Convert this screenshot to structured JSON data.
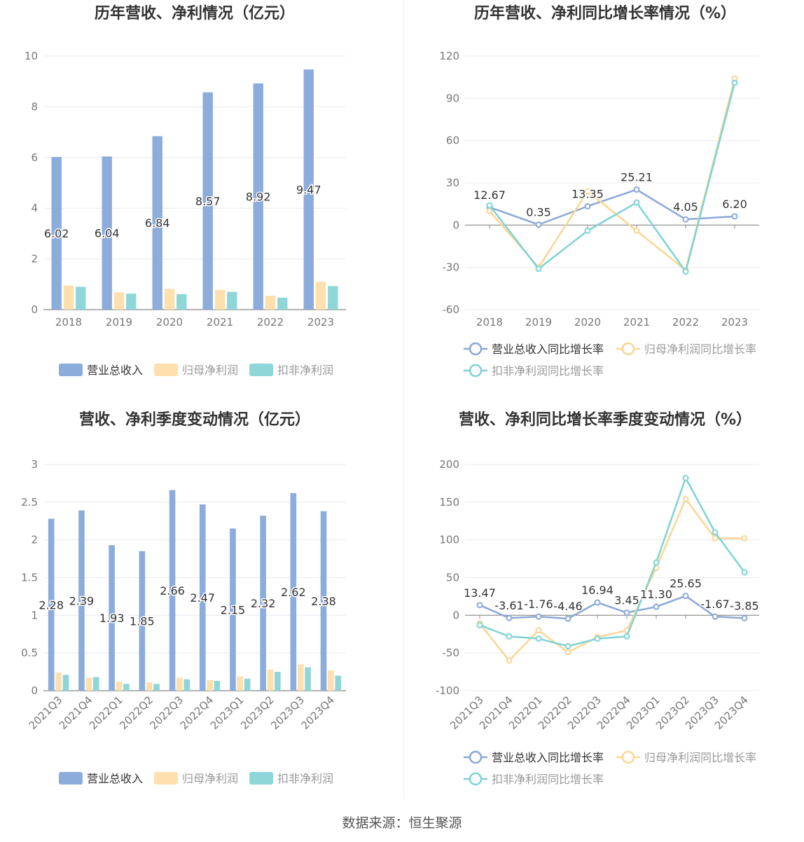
{
  "footer": {
    "source": "数据来源：恒生聚源"
  },
  "colors": {
    "revenue": "#8cacdc",
    "net_profit": "#fde0ad",
    "deducted_profit": "#8fd6d9",
    "revenue_line": "#8aa8d8",
    "net_line": "#fad694",
    "deducted_line": "#7fd3d4",
    "grid": "#e8ebf2",
    "axis": "#888888",
    "tick": "#777777",
    "title": "#333333"
  },
  "chart_data": [
    {
      "id": "annual-bar",
      "type": "bar",
      "title": "历年营收、净利情况（亿元）",
      "categories": [
        "2018",
        "2019",
        "2020",
        "2021",
        "2022",
        "2023"
      ],
      "ylim": [
        0,
        10
      ],
      "yticks": [
        0,
        2,
        4,
        6,
        8,
        10
      ],
      "grid": true,
      "legend_position": "bottom",
      "series": [
        {
          "name": "营业总收入",
          "values": [
            6.02,
            6.04,
            6.84,
            8.57,
            8.92,
            9.47
          ],
          "labels": [
            "6.02",
            "6.04",
            "6.84",
            "8.57",
            "8.92",
            "9.47"
          ]
        },
        {
          "name": "归母净利润",
          "values": [
            0.95,
            0.68,
            0.82,
            0.78,
            0.55,
            1.1
          ]
        },
        {
          "name": "扣非净利润",
          "values": [
            0.9,
            0.63,
            0.61,
            0.7,
            0.47,
            0.93
          ]
        }
      ]
    },
    {
      "id": "annual-line",
      "type": "line",
      "title": "历年营收、净利同比增长率情况（%）",
      "categories": [
        "2018",
        "2019",
        "2020",
        "2021",
        "2022",
        "2023"
      ],
      "ylim": [
        -60,
        120
      ],
      "yticks": [
        -60,
        -30,
        0,
        30,
        60,
        90,
        120
      ],
      "grid": true,
      "legend_position": "bottom",
      "series": [
        {
          "name": "营业总收入同比增长率",
          "values": [
            12.67,
            0.35,
            13.35,
            25.21,
            4.05,
            6.2
          ],
          "labels": [
            "12.67",
            "0.35",
            "13.35",
            "25.21",
            "4.05",
            "6.20"
          ]
        },
        {
          "name": "归母净利润同比增长率",
          "values": [
            10,
            -30,
            24,
            -4,
            -32,
            104
          ]
        },
        {
          "name": "扣非净利润同比增长率",
          "values": [
            14,
            -31,
            -4,
            16,
            -33,
            101
          ]
        }
      ]
    },
    {
      "id": "quarter-bar",
      "type": "bar",
      "title": "营收、净利季度变动情况（亿元）",
      "categories": [
        "2021Q3",
        "2021Q4",
        "2022Q1",
        "2022Q2",
        "2022Q3",
        "2022Q4",
        "2023Q1",
        "2023Q2",
        "2023Q3",
        "2023Q4"
      ],
      "ylim": [
        0,
        3
      ],
      "yticks": [
        0,
        0.5,
        1,
        1.5,
        2,
        2.5,
        3
      ],
      "grid": true,
      "legend_position": "bottom",
      "series": [
        {
          "name": "营业总收入",
          "values": [
            2.28,
            2.39,
            1.93,
            1.85,
            2.66,
            2.47,
            2.15,
            2.32,
            2.62,
            2.38
          ],
          "labels": [
            "2.28",
            "2.39",
            "1.93",
            "1.85",
            "2.66",
            "2.47",
            "2.15",
            "2.32",
            "2.62",
            "2.38"
          ]
        },
        {
          "name": "归母净利润",
          "values": [
            0.24,
            0.17,
            0.12,
            0.11,
            0.17,
            0.14,
            0.19,
            0.28,
            0.35,
            0.27
          ]
        },
        {
          "name": "扣非净利润",
          "values": [
            0.21,
            0.18,
            0.09,
            0.09,
            0.15,
            0.13,
            0.16,
            0.25,
            0.31,
            0.2
          ]
        }
      ]
    },
    {
      "id": "quarter-line",
      "type": "line",
      "title": "营收、净利同比增长率季度变动情况（%）",
      "categories": [
        "2021Q3",
        "2021Q4",
        "2022Q1",
        "2022Q2",
        "2022Q3",
        "2022Q4",
        "2023Q1",
        "2023Q2",
        "2023Q3",
        "2023Q4"
      ],
      "ylim": [
        -100,
        200
      ],
      "yticks": [
        -100,
        -50,
        0,
        50,
        100,
        150,
        200
      ],
      "grid": true,
      "legend_position": "bottom",
      "series": [
        {
          "name": "营业总收入同比增长率",
          "values": [
            13.47,
            -3.61,
            -1.76,
            -4.46,
            16.94,
            3.45,
            11.3,
            25.65,
            -1.67,
            -3.85
          ],
          "labels": [
            "13.47",
            "-3.61",
            "-1.76",
            "-4.46",
            "16.94",
            "3.45",
            "11.30",
            "25.65",
            "-1.67",
            "-3.85"
          ]
        },
        {
          "name": "归母净利润同比增长率",
          "values": [
            -11,
            -60,
            -20,
            -49,
            -29,
            -20,
            63,
            154,
            102,
            102
          ]
        },
        {
          "name": "扣非净利润同比增长率",
          "values": [
            -13,
            -28,
            -31,
            -41,
            -31,
            -28,
            70,
            182,
            110,
            57
          ]
        }
      ]
    }
  ]
}
